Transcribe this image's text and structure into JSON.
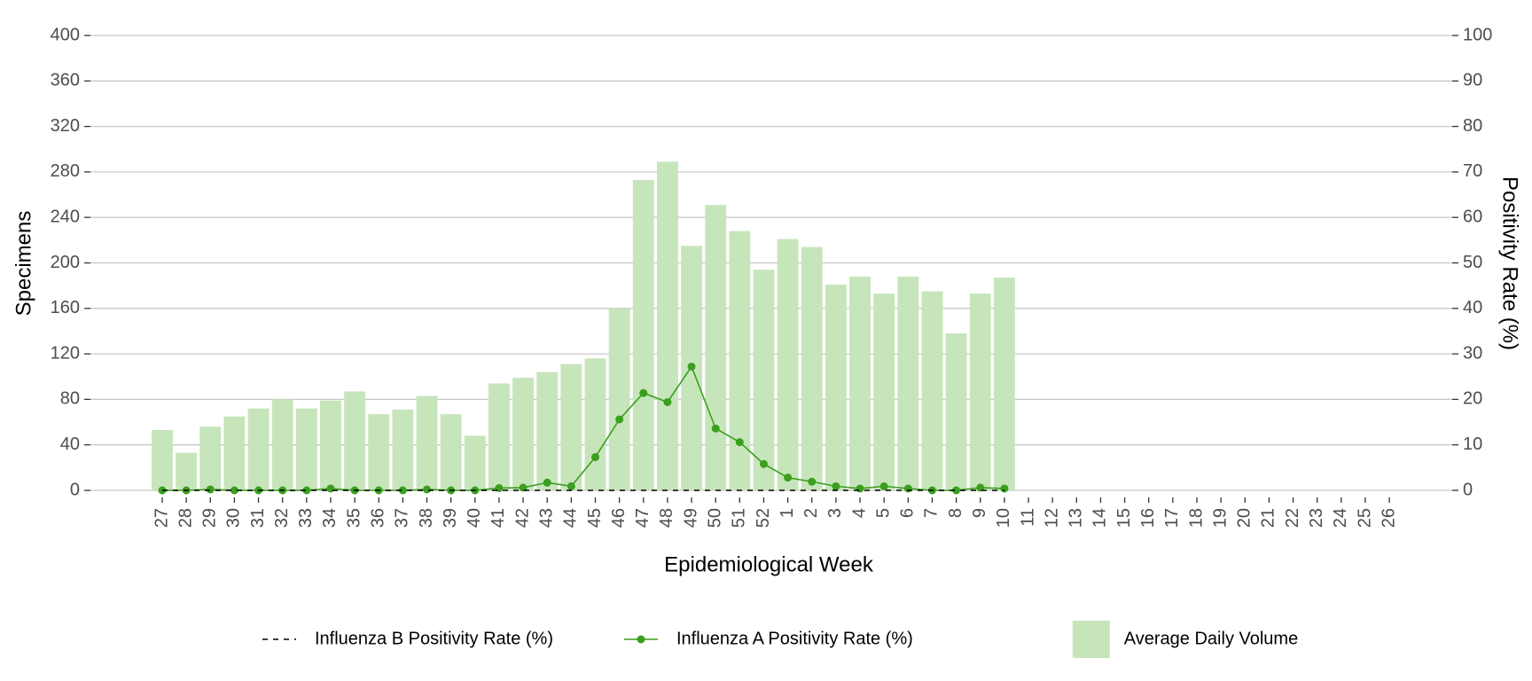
{
  "chart_data": {
    "type": "bar",
    "xlabel": "Epidemiological Week",
    "ylabel": "Specimens",
    "y2label": "Positivity Rate (%)",
    "categories": [
      "27",
      "28",
      "29",
      "30",
      "31",
      "32",
      "33",
      "34",
      "35",
      "36",
      "37",
      "38",
      "39",
      "40",
      "41",
      "42",
      "43",
      "44",
      "45",
      "46",
      "47",
      "48",
      "49",
      "50",
      "51",
      "52",
      "1",
      "2",
      "3",
      "4",
      "5",
      "6",
      "7",
      "8",
      "9",
      "10",
      "11",
      "12",
      "13",
      "14",
      "15",
      "16",
      "17",
      "18",
      "19",
      "20",
      "21",
      "22",
      "23",
      "24",
      "25",
      "26"
    ],
    "series": [
      {
        "name": "Average Daily Volume",
        "type": "bar",
        "color": "#c7e5bb",
        "values": [
          53,
          33,
          56,
          65,
          72,
          80,
          72,
          79,
          87,
          67,
          71,
          83,
          67,
          48,
          94,
          99,
          104,
          111,
          116,
          160,
          273,
          289,
          215,
          251,
          228,
          194,
          221,
          214,
          181,
          188,
          173,
          188,
          175,
          138,
          173,
          187,
          null,
          null,
          null,
          null,
          null,
          null,
          null,
          null,
          null,
          null,
          null,
          null,
          null,
          null,
          null,
          null
        ]
      },
      {
        "name": "Influenza A Positivity Rate (%)",
        "type": "line",
        "axis": "y2",
        "color": "#3a9e1f",
        "marker": true,
        "values": [
          0,
          0,
          0.2,
          0,
          0,
          0,
          0,
          0.4,
          0,
          0,
          0,
          0.2,
          0,
          0,
          0.5,
          0.6,
          1.7,
          0.9,
          7.3,
          15.6,
          21.4,
          19.4,
          27.2,
          13.6,
          10.6,
          5.8,
          2.8,
          1.9,
          0.9,
          0.4,
          0.9,
          0.4,
          0,
          0,
          0.6,
          0.4,
          null,
          null,
          null,
          null,
          null,
          null,
          null,
          null,
          null,
          null,
          null,
          null,
          null,
          null,
          null,
          null
        ]
      },
      {
        "name": "Influenza B Positivity Rate (%)",
        "type": "line",
        "axis": "y2",
        "color": "#000000",
        "dashed": true,
        "values": [
          0,
          0,
          0,
          0,
          0,
          0,
          0,
          0,
          0,
          0,
          0,
          0,
          0,
          0,
          0,
          0,
          0,
          0,
          0,
          0,
          0,
          0,
          0,
          0,
          0,
          0,
          0,
          0,
          0,
          0,
          0,
          0,
          0,
          0,
          0,
          0,
          null,
          null,
          null,
          null,
          null,
          null,
          null,
          null,
          null,
          null,
          null,
          null,
          null,
          null,
          null,
          null
        ]
      }
    ],
    "ylim": [
      0,
      400
    ],
    "yticks": [
      0,
      40,
      80,
      120,
      160,
      200,
      240,
      280,
      320,
      360,
      400
    ],
    "y2lim": [
      0,
      100
    ],
    "y2ticks": [
      0,
      10,
      20,
      30,
      40,
      50,
      60,
      70,
      80,
      90,
      100
    ],
    "grid": true,
    "legend": "bottom"
  }
}
